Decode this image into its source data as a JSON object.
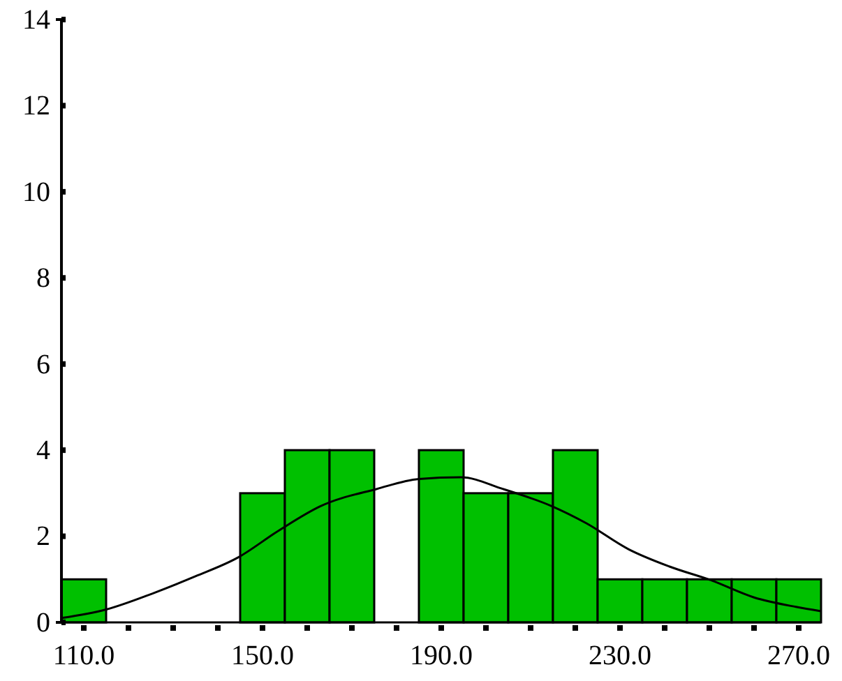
{
  "chart_data": {
    "type": "histogram",
    "bins": [
      105,
      115,
      125,
      135,
      145,
      155,
      165,
      175,
      185,
      195,
      205,
      215,
      225,
      235,
      245,
      255,
      265,
      275
    ],
    "series": [
      {
        "color": "#00c000",
        "values": [
          1,
          0,
          0,
          0,
          3,
          4,
          4,
          0,
          4,
          3,
          3,
          4,
          1,
          1,
          1,
          1,
          1
        ]
      },
      {
        "type": "line",
        "color": "#000000",
        "x": [
          105,
          115,
          125.6,
          135,
          144.4,
          153.75,
          163,
          175.6,
          185,
          194.4,
          203.75,
          214.7,
          222.5,
          231.9,
          241,
          250.6,
          260,
          269.4,
          275
        ],
        "values": [
          0.1,
          0.3,
          0.68,
          1.07,
          1.5,
          2.14,
          2.7,
          3.1,
          3.33,
          3.37,
          3.1,
          2.7,
          2.3,
          1.7,
          1.3,
          0.97,
          0.58,
          0.36,
          0.26
        ]
      }
    ],
    "xlim": [
      105,
      275
    ],
    "xticks": [
      {
        "value": 110,
        "label": "110.0"
      },
      {
        "value": 120,
        "label": null
      },
      {
        "value": 130,
        "label": null
      },
      {
        "value": 140,
        "label": null
      },
      {
        "value": 150,
        "label": "150.0"
      },
      {
        "value": 160,
        "label": null
      },
      {
        "value": 170,
        "label": null
      },
      {
        "value": 180,
        "label": null
      },
      {
        "value": 190,
        "label": "190.0"
      },
      {
        "value": 200,
        "label": null
      },
      {
        "value": 210,
        "label": null
      },
      {
        "value": 220,
        "label": null
      },
      {
        "value": 230,
        "label": "230.0"
      },
      {
        "value": 240,
        "label": null
      },
      {
        "value": 250,
        "label": null
      },
      {
        "value": 260,
        "label": null
      },
      {
        "value": 270,
        "label": "270.0"
      }
    ],
    "ylim": [
      0,
      14
    ],
    "yticks": [
      0,
      2,
      4,
      6,
      8,
      10,
      12,
      14
    ],
    "grid": false
  }
}
